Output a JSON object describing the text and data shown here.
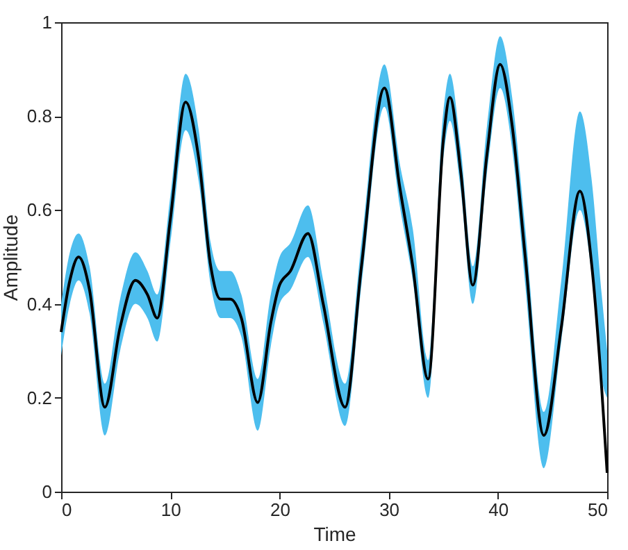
{
  "chart_data": {
    "type": "line",
    "xlabel": "Time",
    "ylabel": "Amplitude",
    "xlim": [
      0,
      50
    ],
    "ylim": [
      0,
      1
    ],
    "xticks": [
      0,
      10,
      20,
      30,
      40,
      50
    ],
    "yticks": [
      0,
      0.2,
      0.4,
      0.6,
      0.8,
      1
    ],
    "grid": false,
    "series": [
      {
        "color": "#000000",
        "x": [
          0,
          0.8,
          1.6,
          2.6,
          4,
          5.4,
          6.8,
          7.9,
          8.8,
          10,
          11.4,
          12.6,
          13.7,
          14.6,
          15.5,
          16.5,
          18,
          19.2,
          20,
          21,
          22.6,
          24,
          26,
          27.5,
          29.6,
          31,
          32.2,
          33.6,
          35,
          35.6,
          36.6,
          37.7,
          39,
          40.2,
          41.3,
          42.5,
          44.2,
          45.8,
          47.5,
          48.6,
          49.5,
          50
        ],
        "values": [
          0.34,
          0.45,
          0.5,
          0.43,
          0.18,
          0.35,
          0.45,
          0.42,
          0.37,
          0.58,
          0.83,
          0.71,
          0.48,
          0.41,
          0.41,
          0.37,
          0.19,
          0.36,
          0.44,
          0.47,
          0.55,
          0.4,
          0.18,
          0.48,
          0.86,
          0.65,
          0.48,
          0.24,
          0.75,
          0.84,
          0.68,
          0.44,
          0.72,
          0.91,
          0.78,
          0.5,
          0.12,
          0.35,
          0.64,
          0.48,
          0.22,
          0.04
        ],
        "lower": [
          0.29,
          0.4,
          0.45,
          0.38,
          0.12,
          0.3,
          0.4,
          0.37,
          0.32,
          0.53,
          0.77,
          0.66,
          0.44,
          0.37,
          0.37,
          0.33,
          0.13,
          0.31,
          0.4,
          0.43,
          0.5,
          0.36,
          0.14,
          0.44,
          0.82,
          0.61,
          0.45,
          0.2,
          0.71,
          0.79,
          0.64,
          0.4,
          0.68,
          0.86,
          0.73,
          0.44,
          0.05,
          0.32,
          0.6,
          0.46,
          0.24,
          0.2
        ],
        "upper": [
          0.4,
          0.51,
          0.55,
          0.48,
          0.23,
          0.41,
          0.51,
          0.47,
          0.42,
          0.63,
          0.89,
          0.77,
          0.53,
          0.47,
          0.47,
          0.42,
          0.24,
          0.42,
          0.5,
          0.53,
          0.61,
          0.45,
          0.23,
          0.53,
          0.91,
          0.7,
          0.56,
          0.28,
          0.81,
          0.89,
          0.73,
          0.48,
          0.78,
          0.97,
          0.84,
          0.56,
          0.17,
          0.45,
          0.81,
          0.66,
          0.42,
          0.3
        ]
      }
    ]
  }
}
